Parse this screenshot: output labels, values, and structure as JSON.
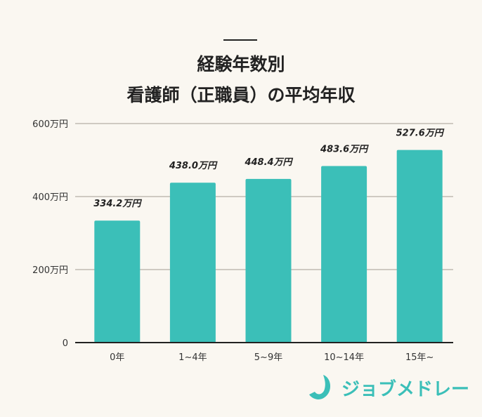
{
  "title_line1": "経験年数別",
  "title_line2": "看護師（正職員）の平均年収",
  "logo_text": "ジョブメドレー",
  "colors": {
    "bar": "#3bbfb8",
    "background": "#faf7f1",
    "grid": "#cfcac2"
  },
  "chart_data": {
    "type": "bar",
    "title": "経験年数別 看護師（正職員）の平均年収",
    "categories": [
      "0年",
      "1~4年",
      "5~9年",
      "10~14年",
      "15年~"
    ],
    "values": [
      334.2,
      438.0,
      448.4,
      483.6,
      527.6
    ],
    "data_labels": [
      "334.2万円",
      "438.0万円",
      "448.4万円",
      "483.6万円",
      "527.6万円"
    ],
    "yticks": [
      0,
      200,
      400,
      600
    ],
    "ytick_labels": [
      "0",
      "200万円",
      "400万円",
      "600万円"
    ],
    "ylim": [
      0,
      600
    ],
    "grid": true
  }
}
